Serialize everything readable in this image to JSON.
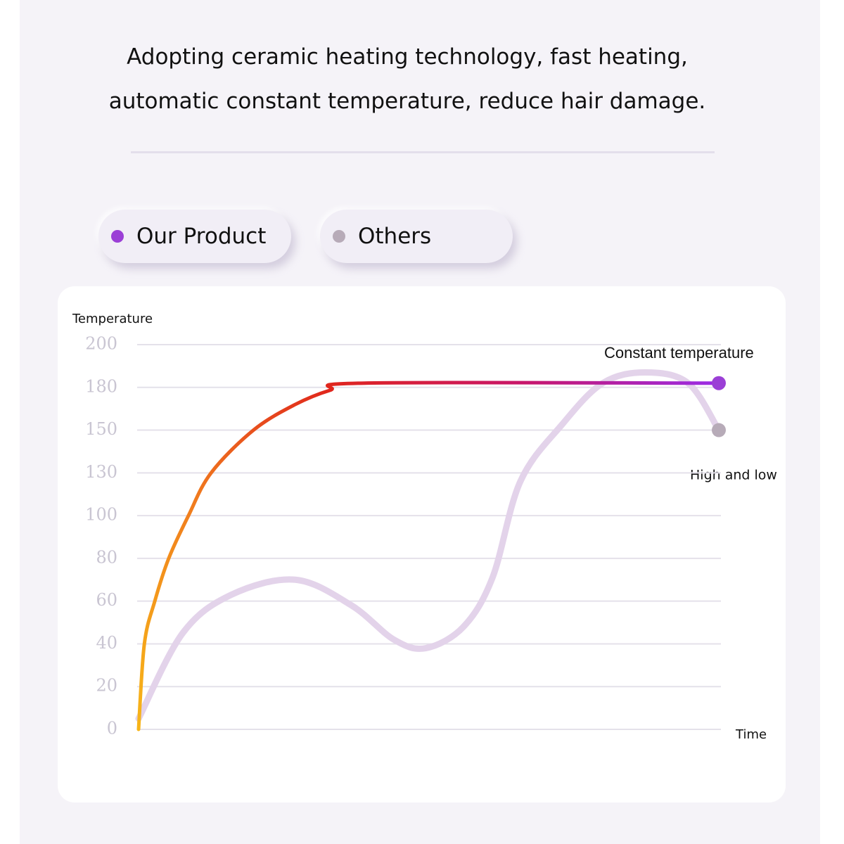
{
  "chart_data": {
    "type": "line",
    "title": "Adopting ceramic heating technology, fast heating, automatic constant temperature, reduce hair damage.",
    "y_label": "Temperature",
    "x_label": "Time",
    "ylim": [
      0,
      200
    ],
    "yticks": [
      0,
      20,
      40,
      60,
      80,
      100,
      130,
      150,
      180,
      200
    ],
    "xlim": [
      0,
      100
    ],
    "grid": true,
    "series": [
      {
        "name": "Our Product",
        "color": "#9b3fd6",
        "gradient": [
          "#f7b519",
          "#f07a1e",
          "#e0261c",
          "#c8156a",
          "#9a2de8"
        ],
        "x": [
          0,
          1,
          2.8,
          5.2,
          8.6,
          12.5,
          19.8,
          27,
          33,
          39,
          100
        ],
        "values": [
          0,
          40,
          60,
          80,
          100,
          130,
          150,
          168,
          178,
          182,
          182
        ]
      },
      {
        "name": "Others",
        "color": "#e3d3ea",
        "dot_color": "#b7abb8",
        "x": [
          0,
          7.6,
          16,
          27,
          36.7,
          44,
          49.5,
          56,
          61,
          65.8,
          73,
          80,
          87.3,
          94.7,
          100
        ],
        "values": [
          5,
          45,
          63,
          70,
          58,
          42,
          38,
          48,
          71,
          124,
          154,
          182,
          187,
          182,
          150
        ]
      }
    ],
    "annotations": [
      {
        "text": "Constant temperature"
      },
      {
        "text": "High and low"
      }
    ]
  }
}
